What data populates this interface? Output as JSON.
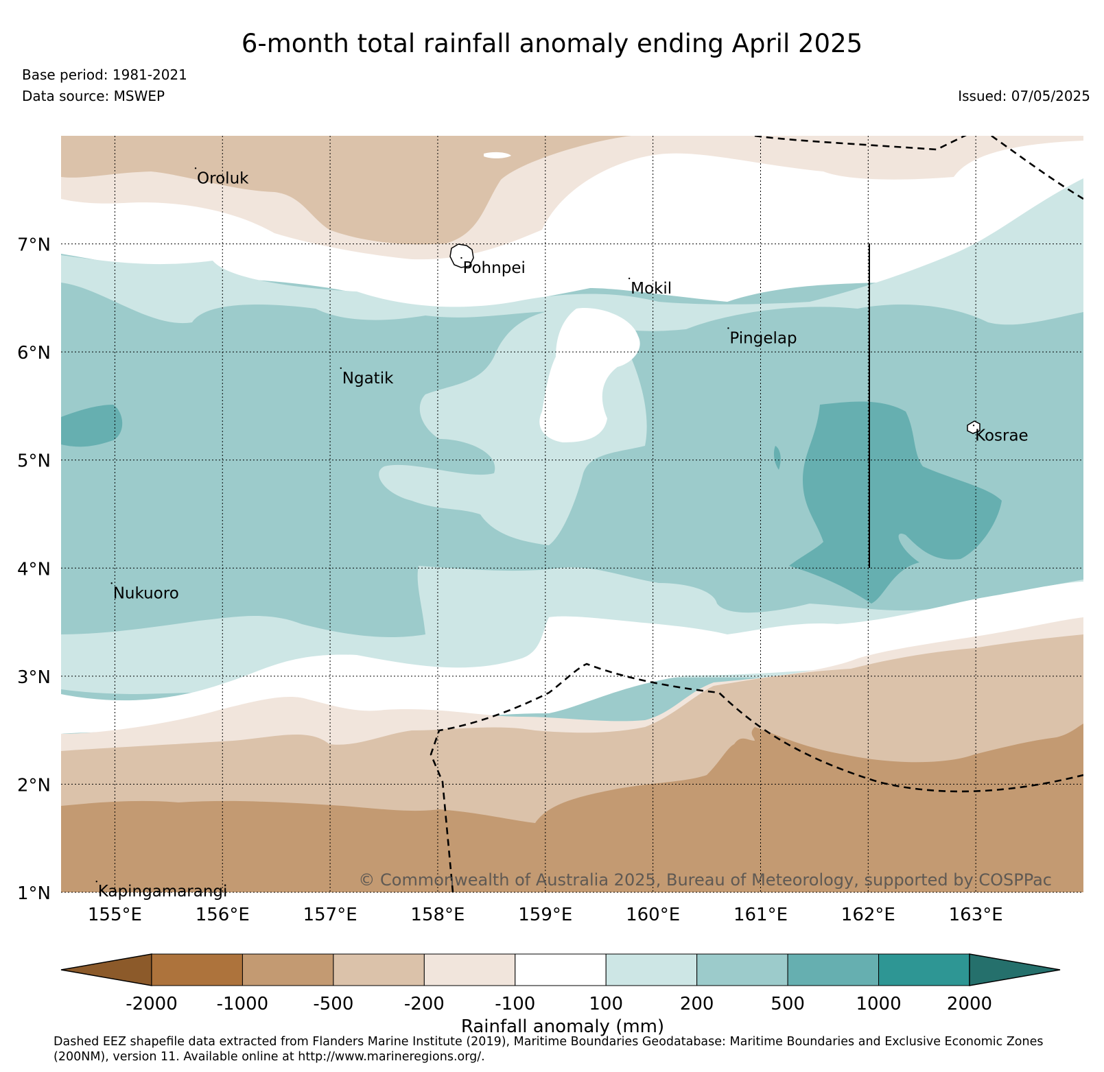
{
  "title": "6-month total rainfall anomaly ending April 2025",
  "base_period": "Base period: 1981-2021",
  "data_source": "Data source: MSWEP",
  "issued": "Issued: 07/05/2025",
  "copyright": "© Commonwealth of Australia 2025, Bureau of Meteorology, supported by COSPPac",
  "map": {
    "lon_range": [
      154.5,
      164.0
    ],
    "lat_range": [
      1.0,
      8.0
    ],
    "lon_ticks": [
      {
        "value": 155,
        "label": "155°E"
      },
      {
        "value": 156,
        "label": "156°E"
      },
      {
        "value": 157,
        "label": "157°E"
      },
      {
        "value": 158,
        "label": "158°E"
      },
      {
        "value": 159,
        "label": "159°E"
      },
      {
        "value": 160,
        "label": "160°E"
      },
      {
        "value": 161,
        "label": "161°E"
      },
      {
        "value": 162,
        "label": "162°E"
      },
      {
        "value": 163,
        "label": "163°E"
      }
    ],
    "lat_ticks": [
      {
        "value": 7,
        "label": "7°N"
      },
      {
        "value": 6,
        "label": "6°N"
      },
      {
        "value": 5,
        "label": "5°N"
      },
      {
        "value": 4,
        "label": "4°N"
      },
      {
        "value": 3,
        "label": "3°N"
      },
      {
        "value": 2,
        "label": "2°N"
      },
      {
        "value": 1,
        "label": "1°N"
      }
    ],
    "places": [
      {
        "name": "Oroluk",
        "lon": 155.75,
        "lat": 7.7
      },
      {
        "name": "Pohnpei",
        "lon": 158.22,
        "lat": 6.87
      },
      {
        "name": "Mokil",
        "lon": 159.78,
        "lat": 6.68
      },
      {
        "name": "Pingelap",
        "lon": 160.7,
        "lat": 6.22
      },
      {
        "name": "Ngatik",
        "lon": 157.1,
        "lat": 5.85
      },
      {
        "name": "Kosrae",
        "lon": 162.98,
        "lat": 5.32
      },
      {
        "name": "Nukuoro",
        "lon": 154.97,
        "lat": 3.86
      },
      {
        "name": "Kapingamarangi",
        "lon": 154.83,
        "lat": 1.1
      }
    ]
  },
  "colorbar": {
    "title": "Rainfall anomaly (mm)",
    "levels": [
      "-2000",
      "-1000",
      "-500",
      "-200",
      "-100",
      "100",
      "200",
      "500",
      "1000",
      "2000"
    ],
    "colors": [
      "#8c5a2a",
      "#ad733c",
      "#c39a72",
      "#dbc2aa",
      "#f1e5dc",
      "#ffffff",
      "#cde6e5",
      "#9ccbcb",
      "#66afb0",
      "#2e9694",
      "#25706c"
    ]
  },
  "footnote": "Dashed EEZ shapefile data extracted from Flanders Marine Institute (2019), Maritime Boundaries Geodatabase: Maritime Boundaries and Exclusive Economic Zones (200NM), version 11. Available online at http://www.marineregions.org/."
}
